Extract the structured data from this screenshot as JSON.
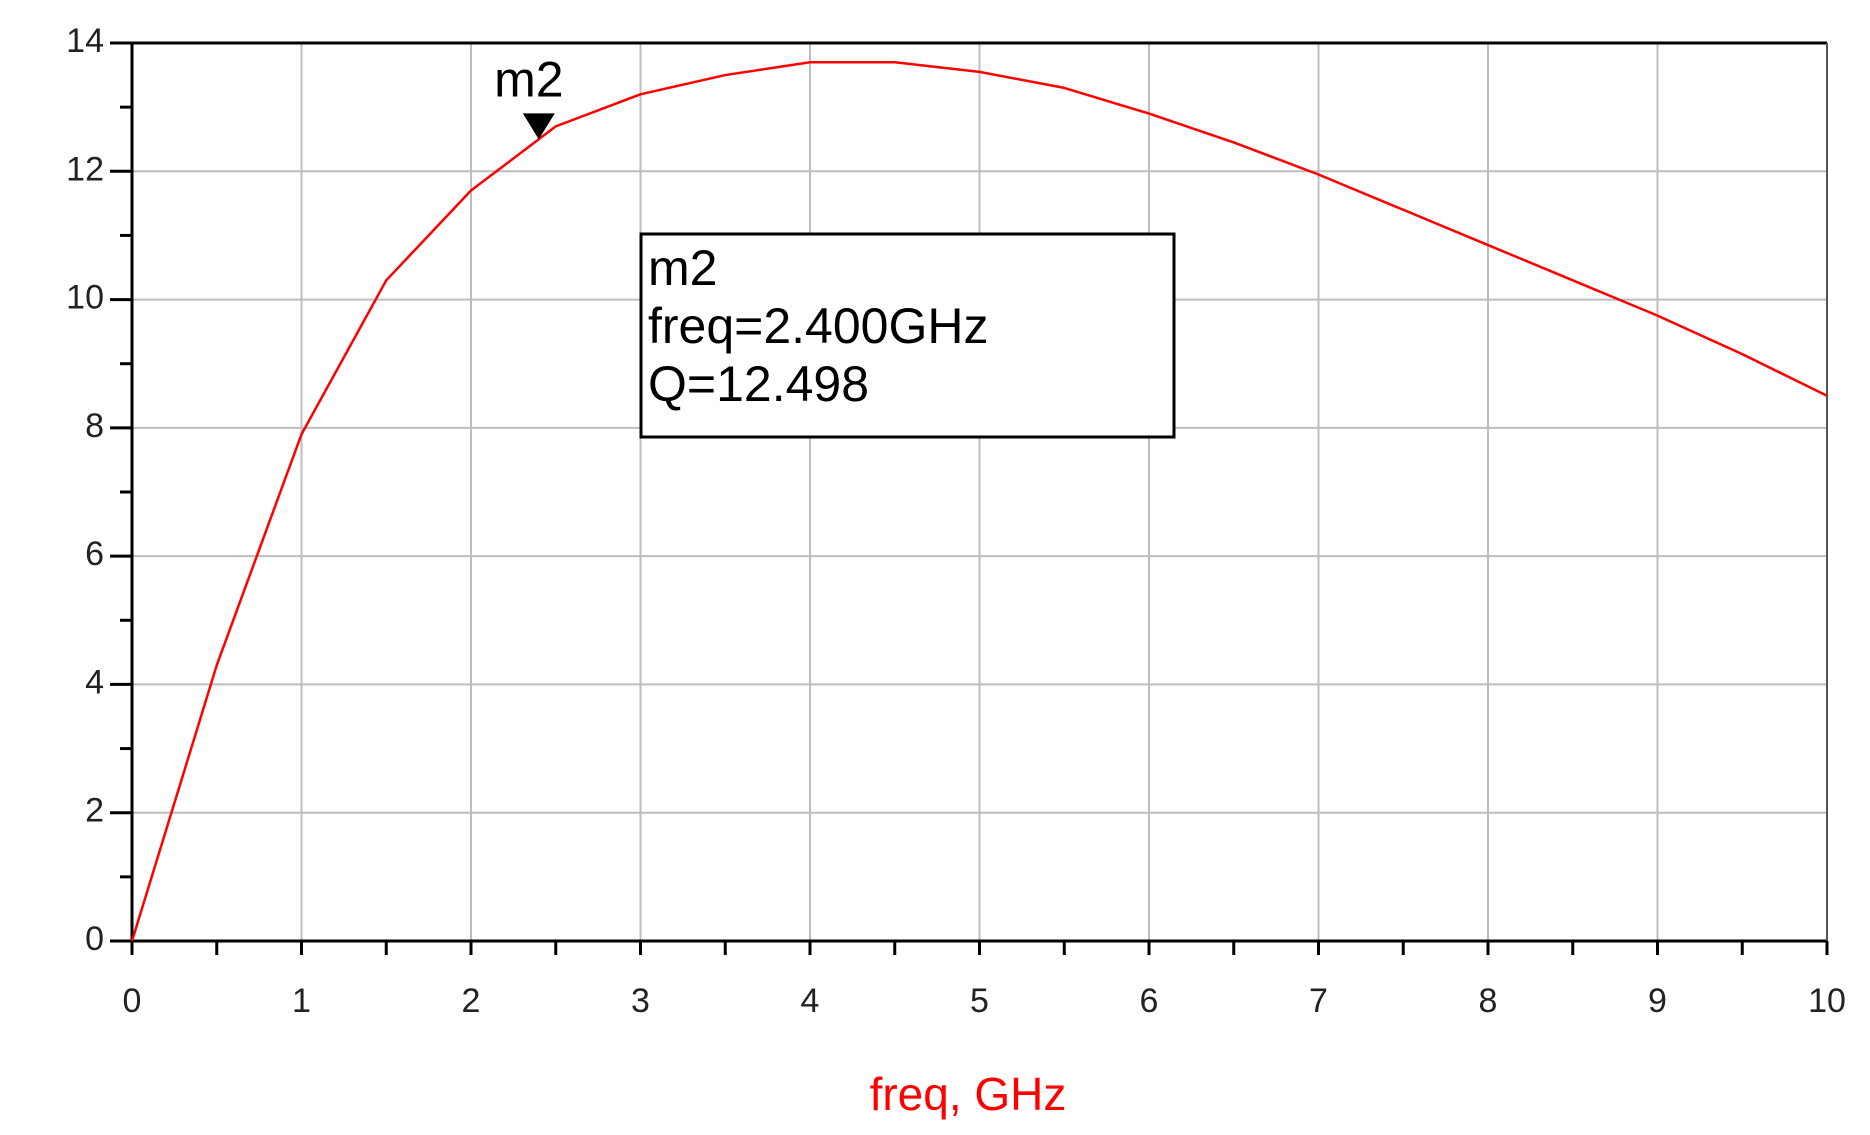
{
  "chart_data": {
    "type": "line",
    "x_label": "freq, GHz",
    "x": [
      0,
      0.5,
      1,
      1.5,
      2,
      2.5,
      3,
      3.5,
      4,
      4.5,
      5,
      5.5,
      6,
      6.5,
      7,
      7.5,
      8,
      8.5,
      9,
      9.5,
      10
    ],
    "series": [
      {
        "name": "Q",
        "color": "#ff0000",
        "values": [
          0,
          4.3,
          7.9,
          10.3,
          11.7,
          12.7,
          13.2,
          13.5,
          13.7,
          13.7,
          13.55,
          13.3,
          12.9,
          12.45,
          11.95,
          11.4,
          10.85,
          10.3,
          9.75,
          9.15,
          8.5
        ]
      }
    ],
    "xlim": [
      0,
      10
    ],
    "xticks": [
      0,
      1,
      2,
      3,
      4,
      5,
      6,
      7,
      8,
      9,
      10
    ],
    "ylim": [
      0,
      14
    ],
    "yticks": [
      0,
      2,
      4,
      6,
      8,
      10,
      12,
      14
    ],
    "grid": true,
    "marker": {
      "name": "m2",
      "x": 2.4,
      "y": 12.498
    },
    "annotation": {
      "lines": [
        "m2",
        "freq=2.400GHz",
        "Q=12.498"
      ]
    }
  }
}
